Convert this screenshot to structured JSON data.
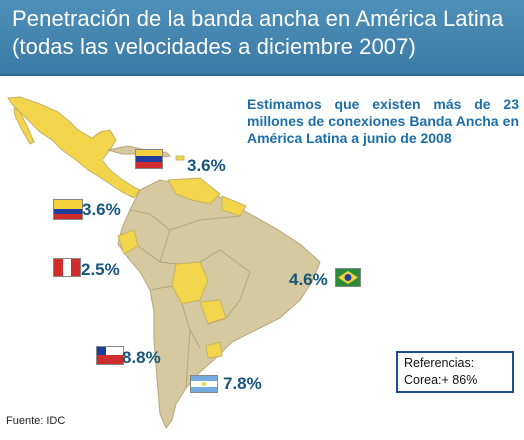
{
  "title": {
    "line1": "Penetración de la banda ancha en América Latina",
    "line2": "(todas las velocidades a diciembre 2007)"
  },
  "estimate_text": "Estimamos que existen más de 23 millones de conexiones Banda Ancha en América Latina a junio de 2008",
  "countries": [
    {
      "flag": "venezuela-flag",
      "value": "3.6%"
    },
    {
      "flag": "colombia-flag",
      "value": "3.6%"
    },
    {
      "flag": "peru-flag",
      "value": "2.5%"
    },
    {
      "flag": "brazil-flag",
      "value": "4.6%"
    },
    {
      "flag": "chile-flag",
      "value": "8.8%"
    },
    {
      "flag": "argentina-flag",
      "value": "7.8%"
    }
  ],
  "references": {
    "label": "Referencias:",
    "item": "Corea:+ 86%"
  },
  "source": "Fuente: IDC",
  "colors": {
    "header": "#3f82ae",
    "highlight_land": "#f2d54a",
    "land": "#d6c9a0",
    "ocean": "#ffffff",
    "value_text": "#17557c",
    "estimate_text": "#1c6ea8"
  }
}
